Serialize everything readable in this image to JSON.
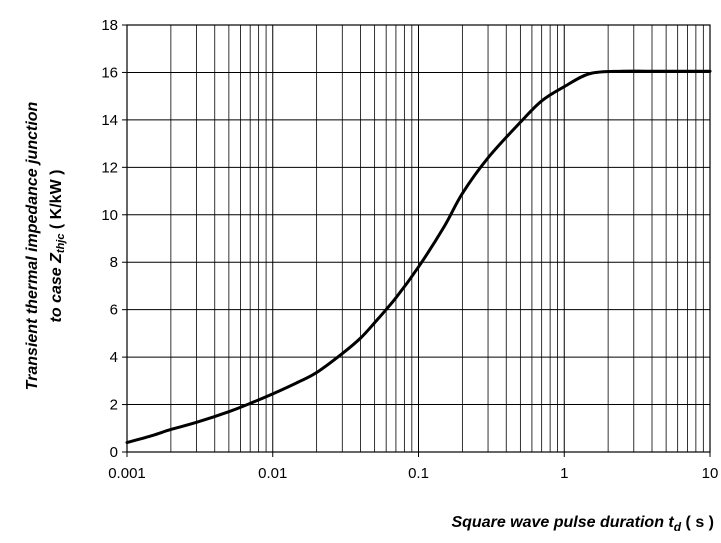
{
  "chart_data": {
    "type": "line",
    "x_scale": "log",
    "y_scale": "linear",
    "grid": true,
    "xlim": [
      0.001,
      10
    ],
    "ylim": [
      0,
      18
    ],
    "x_ticks": [
      0.001,
      0.01,
      0.1,
      1,
      10
    ],
    "x_tick_labels": [
      "0.001",
      "0.01",
      "0.1",
      "1",
      "10"
    ],
    "y_ticks": [
      0,
      2,
      4,
      6,
      8,
      10,
      12,
      14,
      16,
      18
    ],
    "y_tick_labels": [
      "0",
      "2",
      "4",
      "6",
      "8",
      "10",
      "12",
      "14",
      "16",
      "18"
    ],
    "xlabel": {
      "main": "Square wave pulse duration t",
      "sub": "d",
      "unit": "( s )"
    },
    "ylabel": {
      "line1": "Transient thermal impedance junction",
      "line2_main": "to case Z",
      "line2_sub": "thjc",
      "line2_unit": "( K/kW )"
    },
    "series": [
      {
        "x": [
          0.001,
          0.0015,
          0.002,
          0.003,
          0.005,
          0.007,
          0.01,
          0.015,
          0.02,
          0.03,
          0.04,
          0.05,
          0.07,
          0.1,
          0.15,
          0.2,
          0.3,
          0.5,
          0.7,
          1,
          1.5,
          2.5,
          4,
          10
        ],
        "y": [
          0.4,
          0.7,
          0.95,
          1.25,
          1.7,
          2.05,
          2.45,
          2.95,
          3.35,
          4.15,
          4.8,
          5.45,
          6.5,
          7.8,
          9.5,
          10.9,
          12.4,
          13.9,
          14.8,
          15.4,
          15.95,
          16.05,
          16.05,
          16.05
        ]
      }
    ]
  }
}
